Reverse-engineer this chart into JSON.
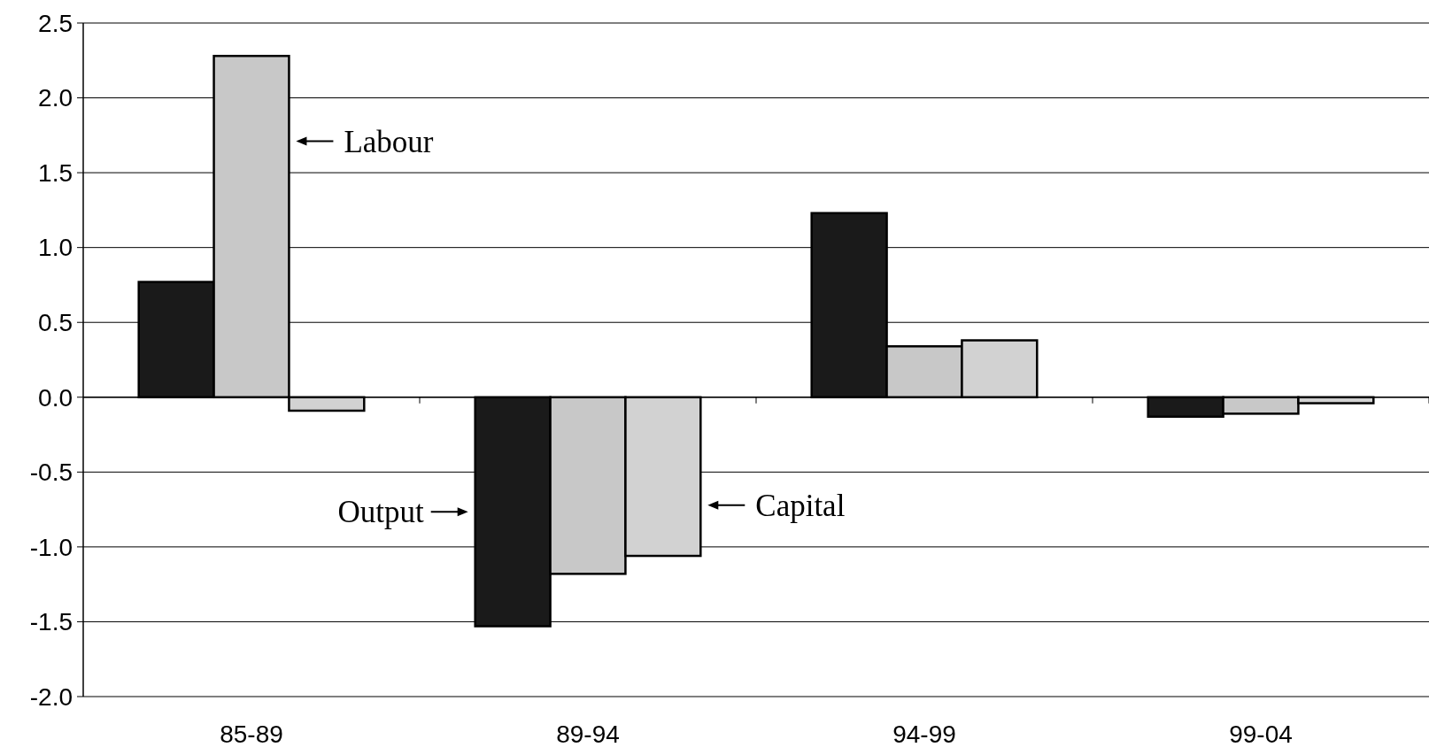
{
  "chart_data": {
    "type": "bar",
    "categories": [
      "85-89",
      "89-94",
      "94-99",
      "99-04"
    ],
    "series": [
      {
        "name": "Output",
        "color": "#1a1a1a",
        "values": [
          0.77,
          -1.53,
          1.23,
          -0.13
        ]
      },
      {
        "name": "Labour",
        "color": "#c8c8c8",
        "values": [
          2.28,
          -1.18,
          0.34,
          -0.11
        ]
      },
      {
        "name": "Capital",
        "color": "#d2d2d2",
        "values": [
          -0.09,
          -1.06,
          0.38,
          -0.04
        ]
      }
    ],
    "ylim": [
      -2,
      2.5
    ],
    "yticks": [
      {
        "value": -2,
        "label": "-2.0"
      },
      {
        "value": -1.5,
        "label": "-1.5"
      },
      {
        "value": -1,
        "label": "-1.0"
      },
      {
        "value": -0.5,
        "label": "-0.5"
      },
      {
        "value": 0,
        "label": "0.0"
      },
      {
        "value": 0.5,
        "label": "0.5"
      },
      {
        "value": 1,
        "label": "1.0"
      },
      {
        "value": 1.5,
        "label": "1.5"
      },
      {
        "value": 2,
        "label": "2.0"
      },
      {
        "value": 2.5,
        "label": "2.5"
      }
    ],
    "grid": "y",
    "legend": "top left"
  }
}
